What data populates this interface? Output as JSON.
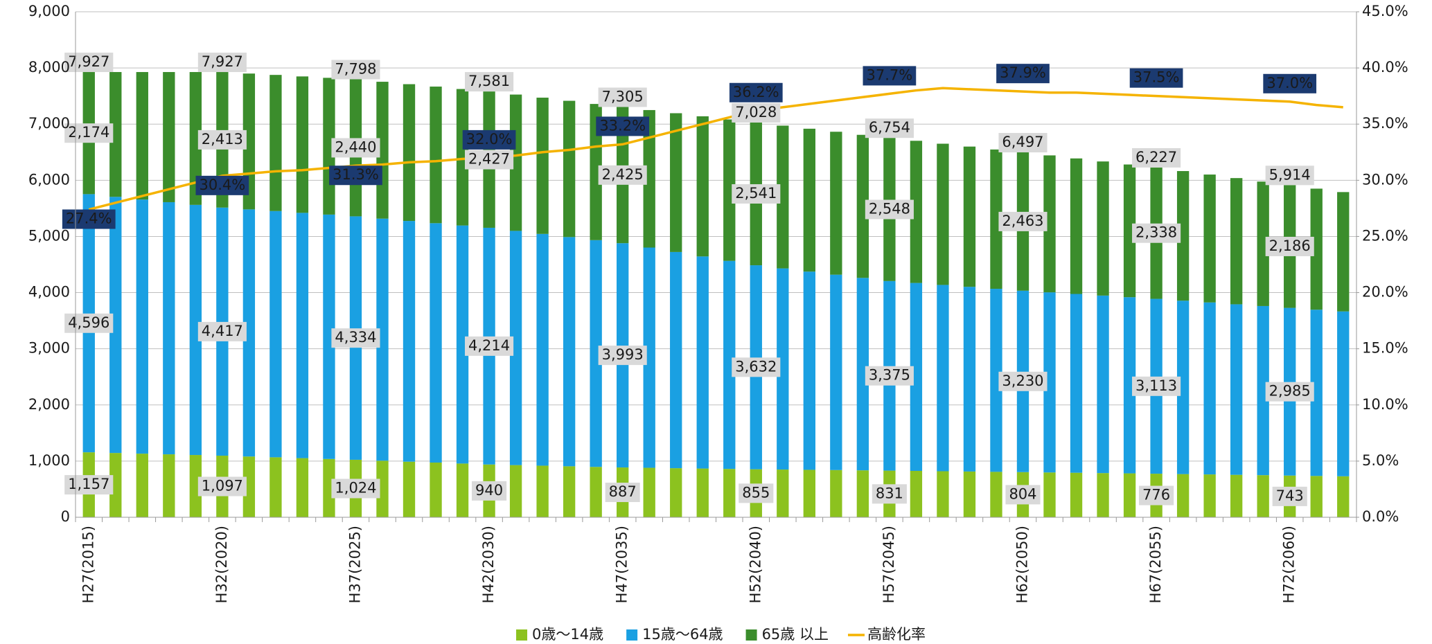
{
  "chart_data": {
    "type": "stacked-bar-line",
    "categories": [
      "H27(2015)",
      null,
      null,
      null,
      null,
      "H32(2020)",
      null,
      null,
      null,
      null,
      "H37(2025)",
      null,
      null,
      null,
      null,
      "H42(2030)",
      null,
      null,
      null,
      null,
      "H47(2035)",
      null,
      null,
      null,
      null,
      "H52(2040)",
      null,
      null,
      null,
      null,
      "H57(2045)",
      null,
      null,
      null,
      null,
      "H62(2050)",
      null,
      null,
      null,
      null,
      "H67(2055)",
      null,
      null,
      null,
      null,
      "H72(2060)",
      null,
      null
    ],
    "series": [
      {
        "name": "0歳～14歳",
        "color": "#8cc21f",
        "values": [
          1157,
          1145,
          1133,
          1121,
          1109,
          1097,
          1082,
          1068,
          1053,
          1038,
          1024,
          1007,
          990,
          974,
          957,
          940,
          929,
          919,
          908,
          897,
          887,
          881,
          874,
          868,
          861,
          855,
          850,
          845,
          841,
          836,
          831,
          826,
          820,
          815,
          809,
          804,
          798,
          793,
          787,
          782,
          776,
          769,
          763,
          756,
          750,
          743,
          736,
          730
        ],
        "value_labels": [
          "1,157",
          null,
          null,
          null,
          null,
          "1,097",
          null,
          null,
          null,
          null,
          "1,024",
          null,
          null,
          null,
          null,
          "940",
          null,
          null,
          null,
          null,
          "887",
          null,
          null,
          null,
          null,
          "855",
          null,
          null,
          null,
          null,
          "831",
          null,
          null,
          null,
          null,
          "804",
          null,
          null,
          null,
          null,
          "776",
          null,
          null,
          null,
          null,
          "743",
          null,
          null
        ]
      },
      {
        "name": "15歳～64歳",
        "color": "#1aa0e2",
        "values": [
          4596,
          4560,
          4524,
          4489,
          4453,
          4417,
          4400,
          4384,
          4367,
          4351,
          4334,
          4310,
          4286,
          4262,
          4238,
          4214,
          4170,
          4126,
          4081,
          4037,
          3993,
          3921,
          3849,
          3776,
          3704,
          3632,
          3581,
          3529,
          3478,
          3426,
          3375,
          3346,
          3317,
          3288,
          3259,
          3230,
          3207,
          3183,
          3160,
          3136,
          3113,
          3087,
          3062,
          3036,
          3011,
          2985,
          2960,
          2935
        ],
        "value_labels": [
          "4,596",
          null,
          null,
          null,
          null,
          "4,417",
          null,
          null,
          null,
          null,
          "4,334",
          null,
          null,
          null,
          null,
          "4,214",
          null,
          null,
          null,
          null,
          "3,993",
          null,
          null,
          null,
          null,
          "3,632",
          null,
          null,
          null,
          null,
          "3,375",
          null,
          null,
          null,
          null,
          "3,230",
          null,
          null,
          null,
          null,
          "3,113",
          null,
          null,
          null,
          null,
          "2,985",
          null,
          null
        ]
      },
      {
        "name": "65歳 以上",
        "color": "#3b8d2c",
        "values": [
          2174,
          2222,
          2270,
          2317,
          2365,
          2413,
          2418,
          2424,
          2429,
          2435,
          2440,
          2437,
          2435,
          2432,
          2430,
          2427,
          2427,
          2426,
          2426,
          2425,
          2425,
          2448,
          2471,
          2495,
          2518,
          2541,
          2542,
          2544,
          2545,
          2547,
          2548,
          2531,
          2514,
          2497,
          2480,
          2463,
          2438,
          2413,
          2388,
          2363,
          2338,
          2308,
          2277,
          2247,
          2216,
          2186,
          2155,
          2125
        ],
        "value_labels": [
          "2,174",
          null,
          null,
          null,
          null,
          "2,413",
          null,
          null,
          null,
          null,
          "2,440",
          null,
          null,
          null,
          null,
          "2,427",
          null,
          null,
          null,
          null,
          "2,425",
          null,
          null,
          null,
          null,
          "2,541",
          null,
          null,
          null,
          null,
          "2,548",
          null,
          null,
          null,
          null,
          "2,463",
          null,
          null,
          null,
          null,
          "2,338",
          null,
          null,
          null,
          null,
          "2,186",
          null,
          null
        ]
      },
      {
        "name": "高齢化率",
        "type": "line",
        "axis": "y2",
        "color": "#f5b300",
        "values": [
          27.4,
          28.0,
          28.6,
          29.2,
          29.8,
          30.4,
          30.6,
          30.8,
          30.9,
          31.1,
          31.3,
          31.4,
          31.6,
          31.7,
          31.9,
          32.0,
          32.2,
          32.5,
          32.7,
          33.0,
          33.2,
          33.8,
          34.4,
          35.0,
          35.6,
          36.2,
          36.5,
          36.8,
          37.1,
          37.4,
          37.7,
          38.0,
          38.2,
          38.1,
          38.0,
          37.9,
          37.8,
          37.8,
          37.7,
          37.6,
          37.5,
          37.4,
          37.3,
          37.2,
          37.1,
          37.0,
          36.7,
          36.5
        ],
        "value_labels": [
          "27.4%",
          null,
          null,
          null,
          null,
          "30.4%",
          null,
          null,
          null,
          null,
          "31.3%",
          null,
          null,
          null,
          null,
          "32.0%",
          null,
          null,
          null,
          null,
          "33.2%",
          null,
          null,
          null,
          null,
          "36.2%",
          null,
          null,
          null,
          null,
          "37.7%",
          null,
          null,
          null,
          null,
          "37.9%",
          null,
          null,
          null,
          null,
          "37.5%",
          null,
          null,
          null,
          null,
          "37.0%",
          null,
          null
        ]
      }
    ],
    "totals": {
      "values": [
        7927,
        null,
        null,
        null,
        null,
        7927,
        null,
        null,
        null,
        null,
        7798,
        null,
        null,
        null,
        null,
        7581,
        null,
        null,
        null,
        null,
        7305,
        null,
        null,
        null,
        null,
        7028,
        null,
        null,
        null,
        null,
        6754,
        null,
        null,
        null,
        null,
        6497,
        null,
        null,
        null,
        null,
        6227,
        null,
        null,
        null,
        null,
        5914,
        null,
        null
      ],
      "value_labels": [
        "7,927",
        null,
        null,
        null,
        null,
        "7,927",
        null,
        null,
        null,
        null,
        "7,798",
        null,
        null,
        null,
        null,
        "7,581",
        null,
        null,
        null,
        null,
        "7,305",
        null,
        null,
        null,
        null,
        "7,028",
        null,
        null,
        null,
        null,
        "6,754",
        null,
        null,
        null,
        null,
        "6,497",
        null,
        null,
        null,
        null,
        "6,227",
        null,
        null,
        null,
        null,
        "5,914",
        null,
        null
      ]
    },
    "ylim": [
      0,
      9000
    ],
    "yticks": [
      0,
      {
        "value": 1000,
        "label": "1,000"
      },
      {
        "value": 2000,
        "label": "2,000"
      },
      {
        "value": 3000,
        "label": "3,000"
      },
      {
        "value": 4000,
        "label": "4,000"
      },
      {
        "value": 5000,
        "label": "5,000"
      },
      {
        "value": 6000,
        "label": "6,000"
      },
      {
        "value": 7000,
        "label": "7,000"
      },
      {
        "value": 8000,
        "label": "8,000"
      },
      {
        "value": 9000,
        "label": "9,000"
      }
    ],
    "y2lim": [
      0,
      45
    ],
    "y2ticks": [
      {
        "value": 0,
        "label": "0.0%"
      },
      {
        "value": 5,
        "label": "5.0%"
      },
      {
        "value": 10,
        "label": "10.0%"
      },
      {
        "value": 15,
        "label": "15.0%"
      },
      {
        "value": 20,
        "label": "20.0%"
      },
      {
        "value": 25,
        "label": "25.0%"
      },
      {
        "value": 30,
        "label": "30.0%"
      },
      {
        "value": 35,
        "label": "35.0%"
      },
      {
        "value": 40,
        "label": "40.0%"
      },
      {
        "value": 45,
        "label": "45.0%"
      }
    ],
    "grid": true,
    "legend": "bottom"
  }
}
